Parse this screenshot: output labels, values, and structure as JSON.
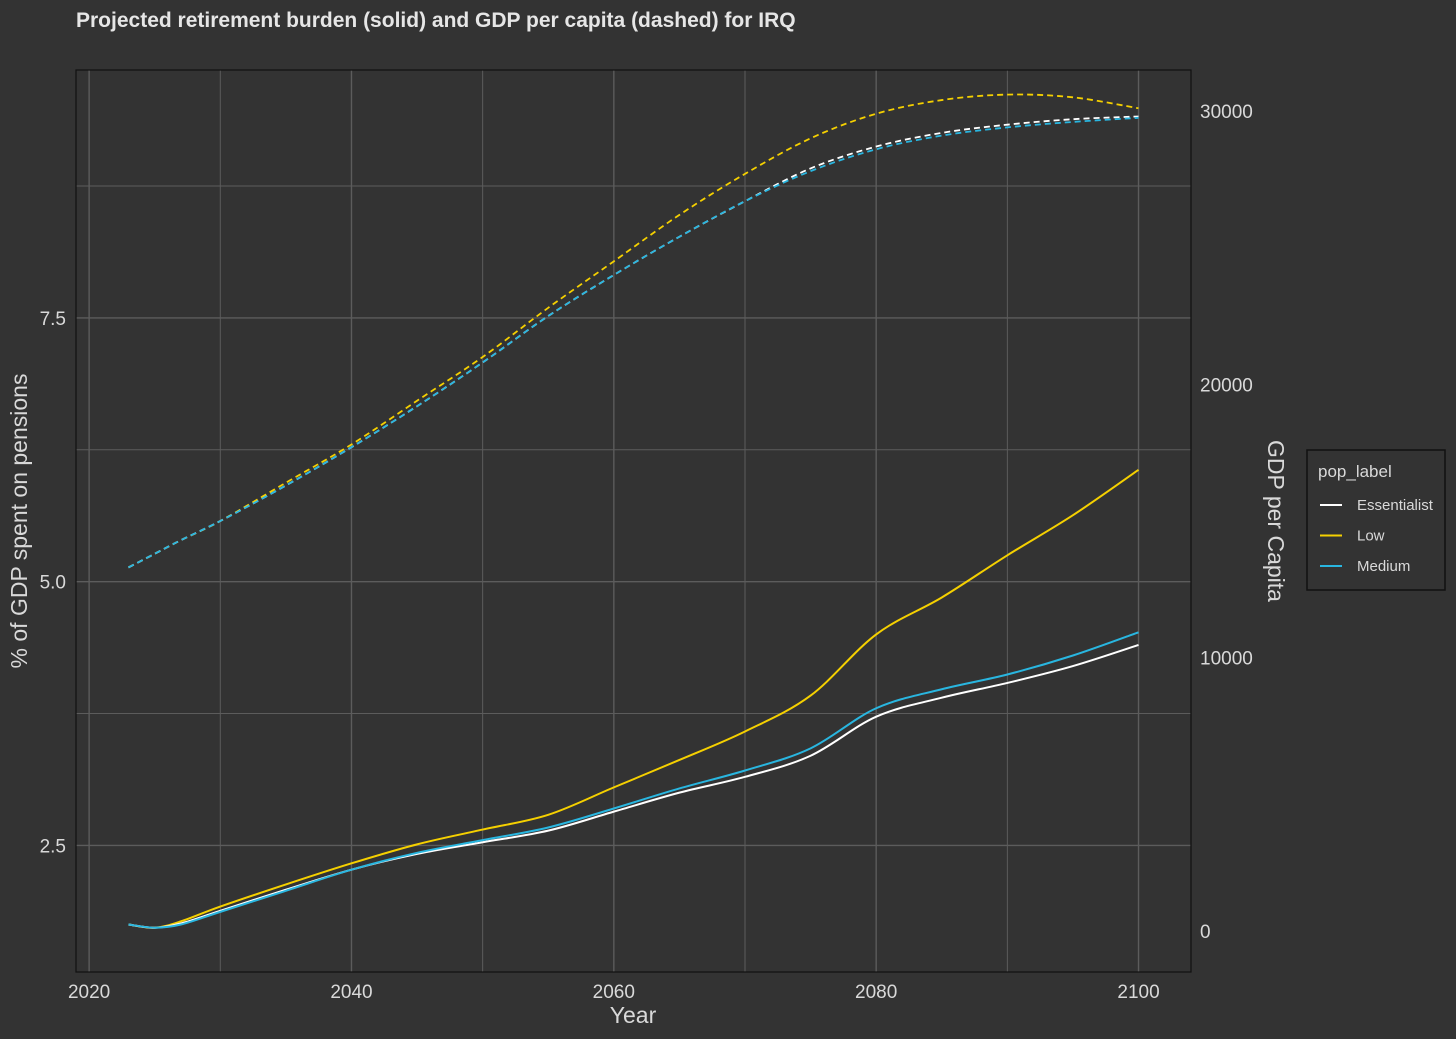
{
  "chart_data": {
    "type": "line",
    "title": "Projected retirement burden (solid) and GDP per capita (dashed) for IRQ",
    "xlabel": "Year",
    "ylabel": "% of GDP spent on pensions",
    "y2label": "GDP per Capita",
    "xlim": [
      2019,
      2104
    ],
    "ylim": [
      1.3,
      9.85
    ],
    "y2lim": [
      -1500,
      31500
    ],
    "x_ticks": [
      2020,
      2040,
      2060,
      2080,
      2100
    ],
    "x_tick_labels": [
      "2020",
      "2040",
      "2060",
      "2080",
      "2100"
    ],
    "y_ticks": [
      2.5,
      5.0,
      7.5
    ],
    "y_tick_labels": [
      "2.5",
      "5.0",
      "7.5"
    ],
    "y_minor_grid": [
      3.75,
      6.25,
      8.75
    ],
    "x_minor_grid": [
      2030,
      2050,
      2070,
      2090
    ],
    "y2_ticks": [
      0,
      10000,
      20000,
      30000
    ],
    "y2_tick_labels": [
      "0",
      "10000",
      "20000",
      "30000"
    ],
    "legend": {
      "title": "pop_label",
      "position": "right",
      "entries": [
        "Essentialist",
        "Low",
        "Medium"
      ]
    },
    "colors": {
      "Essentialist": "#ffffff",
      "Low": "#f5d000",
      "Medium": "#29b6e0",
      "background": "#333333",
      "grid": "#5c5c5c",
      "text": "#d9d9d9"
    },
    "x": [
      2023,
      2025,
      2027,
      2030,
      2035,
      2040,
      2045,
      2050,
      2055,
      2060,
      2065,
      2070,
      2075,
      2080,
      2085,
      2090,
      2095,
      2100
    ],
    "pension_series": [
      {
        "name": "Essentialist",
        "values": [
          1.75,
          1.72,
          1.76,
          1.88,
          2.08,
          2.27,
          2.42,
          2.53,
          2.64,
          2.82,
          3.0,
          3.15,
          3.35,
          3.72,
          3.9,
          4.04,
          4.2,
          4.4
        ]
      },
      {
        "name": "Low",
        "values": [
          1.75,
          1.72,
          1.78,
          1.92,
          2.13,
          2.33,
          2.51,
          2.65,
          2.79,
          3.05,
          3.31,
          3.58,
          3.92,
          4.5,
          4.85,
          5.25,
          5.63,
          6.06
        ]
      },
      {
        "name": "Medium",
        "values": [
          1.75,
          1.72,
          1.75,
          1.87,
          2.07,
          2.27,
          2.43,
          2.55,
          2.67,
          2.85,
          3.04,
          3.21,
          3.42,
          3.8,
          3.98,
          4.12,
          4.3,
          4.52
        ]
      }
    ],
    "gdp_series": [
      {
        "name": "Essentialist",
        "values": [
          13300,
          13800,
          14300,
          15000,
          16300,
          17700,
          19200,
          20800,
          22500,
          24000,
          25400,
          26700,
          27900,
          28700,
          29200,
          29500,
          29700,
          29800
        ]
      },
      {
        "name": "Low",
        "values": [
          13300,
          13800,
          14300,
          15000,
          16400,
          17800,
          19400,
          21000,
          22800,
          24500,
          26200,
          27700,
          29000,
          29900,
          30400,
          30600,
          30500,
          30100
        ]
      },
      {
        "name": "Medium",
        "values": [
          13300,
          13800,
          14300,
          15000,
          16300,
          17700,
          19200,
          20800,
          22500,
          24000,
          25400,
          26700,
          27800,
          28600,
          29100,
          29400,
          29600,
          29750
        ]
      }
    ]
  }
}
